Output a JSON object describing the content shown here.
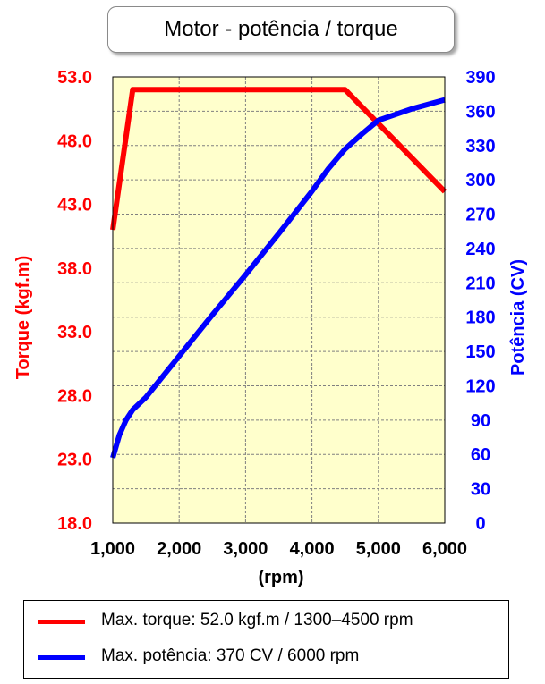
{
  "title": "Motor - potência / torque",
  "colors": {
    "torque": "#ff0000",
    "power": "#0000ff",
    "plot_background": "#ffffcc",
    "grid": "#808080"
  },
  "legend": [
    {
      "label": "Max. torque: 52.0 kgf.m / 1300–4500 rpm",
      "color": "#ff0000"
    },
    {
      "label": "Max. potência: 370 CV / 6000 rpm",
      "color": "#0000ff"
    }
  ],
  "chart_data": {
    "type": "line",
    "title": "Motor - potência / torque",
    "xlabel": "(rpm)",
    "x_ticks": [
      "1,000",
      "2,000",
      "3,000",
      "4,000",
      "5,000",
      "6,000"
    ],
    "xlim": [
      1000,
      6000
    ],
    "y_left": {
      "label": "Torque (kgf.m)",
      "ticks": [
        "53.0",
        "48.0",
        "43.0",
        "38.0",
        "33.0",
        "28.0",
        "23.0",
        "18.0"
      ],
      "ylim": [
        18,
        53
      ]
    },
    "y_right": {
      "label": "Potência (CV)",
      "ticks": [
        "390",
        "360",
        "330",
        "300",
        "270",
        "240",
        "210",
        "180",
        "150",
        "120",
        "90",
        "60",
        "30",
        "0"
      ],
      "ylim": [
        0,
        390
      ]
    },
    "grid": true,
    "legend_position": "bottom",
    "series": [
      {
        "axis": "left",
        "color": "#ff0000",
        "x": [
          1000,
          1300,
          4500,
          6000
        ],
        "y": [
          41.0,
          52.0,
          52.0,
          44.0
        ]
      },
      {
        "axis": "right",
        "color": "#0000ff",
        "x": [
          1000,
          1050,
          1100,
          1200,
          1300,
          1500,
          2000,
          2500,
          3000,
          3500,
          4000,
          4250,
          4500,
          4750,
          5000,
          5500,
          6000
        ],
        "y": [
          57,
          67,
          77,
          90,
          99,
          110,
          146,
          182,
          217,
          253,
          290,
          310,
          327,
          340,
          352,
          362,
          370
        ]
      }
    ]
  }
}
